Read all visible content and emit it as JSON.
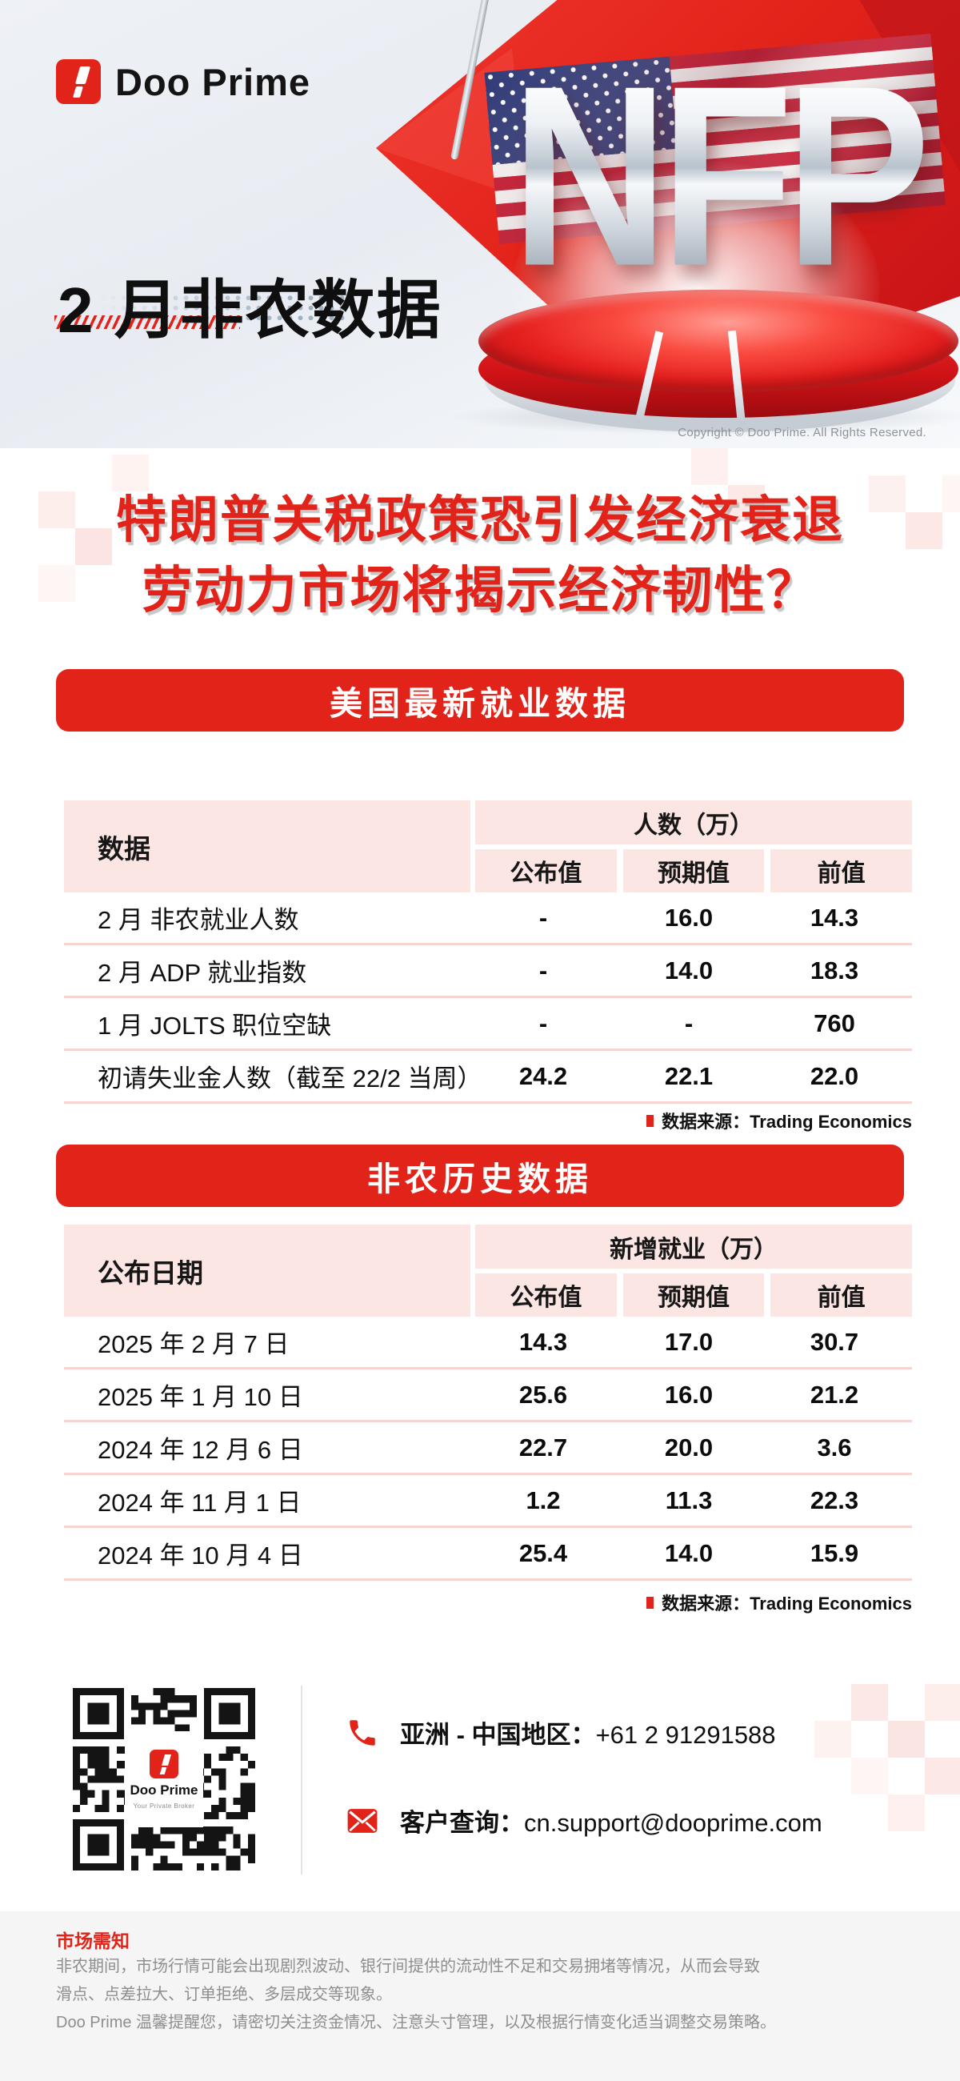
{
  "colors": {
    "brand_red": "#e2231a",
    "table_pink": "#fbe6e4",
    "row_line_pink": "#f6d4d0",
    "footer_gray_text": "#8e8e8e"
  },
  "brand": {
    "logo_text": "Doo Prime"
  },
  "header": {
    "title": "2 月非农数据",
    "nfp_text": "NFP",
    "copyright": "Copyright © Doo Prime. All Rights Reserved."
  },
  "headline": {
    "line1": "特朗普关税政策恐引发经济衰退",
    "line2": "劳动力市场将揭示经济韧性？"
  },
  "section1": {
    "banner": "美国最新就业数据",
    "table": {
      "col0_header": "数据",
      "group_header": "人数（万）",
      "sub_headers": [
        "公布值",
        "预期值",
        "前值"
      ],
      "rows": [
        {
          "label": "2 月 非农就业人数",
          "values": [
            "-",
            "16.0",
            "14.3"
          ]
        },
        {
          "label": "2 月 ADP 就业指数",
          "values": [
            "-",
            "14.0",
            "18.3"
          ]
        },
        {
          "label": "1 月 JOLTS 职位空缺",
          "values": [
            "-",
            "-",
            "760"
          ]
        },
        {
          "label": "初请失业金人数（截至 22/2 当周）",
          "values": [
            "24.2",
            "22.1",
            "22.0"
          ]
        }
      ]
    },
    "source": "数据来源：Trading Economics"
  },
  "section2": {
    "banner": "非农历史数据",
    "table": {
      "col0_header": "公布日期",
      "group_header": "新增就业（万）",
      "sub_headers": [
        "公布值",
        "预期值",
        "前值"
      ],
      "rows": [
        {
          "label": "2025 年 2 月 7 日",
          "values": [
            "14.3",
            "17.0",
            "30.7"
          ]
        },
        {
          "label": "2025 年 1 月 10 日",
          "values": [
            "25.6",
            "16.0",
            "21.2"
          ]
        },
        {
          "label": "2024 年 12 月 6 日",
          "values": [
            "22.7",
            "20.0",
            "3.6"
          ]
        },
        {
          "label": "2024 年 11 月 1 日",
          "values": [
            "1.2",
            "11.3",
            "22.3"
          ]
        },
        {
          "label": "2024 年 10 月 4 日",
          "values": [
            "25.4",
            "14.0",
            "15.9"
          ]
        }
      ]
    },
    "source": "数据来源：Trading Economics"
  },
  "contact": {
    "qr_logo_title": "Doo Prime",
    "qr_logo_subtitle": "Your Private Broker",
    "phone_label": "亚洲 - 中国地区：",
    "phone_value": "+61 2 91291588",
    "email_label": "客户查询：",
    "email_value": "cn.support@dooprime.com"
  },
  "footer": {
    "title": "市场需知",
    "lines": [
      "非农期间，市场行情可能会出现剧烈波动、银行间提供的流动性不足和交易拥堵等情况，从而会导致",
      "滑点、点差拉大、订单拒绝、多层成交等现象。",
      "Doo Prime 温馨提醒您，请密切关注资金情况、注意头寸管理，以及根据行情变化适当调整交易策略。"
    ]
  }
}
